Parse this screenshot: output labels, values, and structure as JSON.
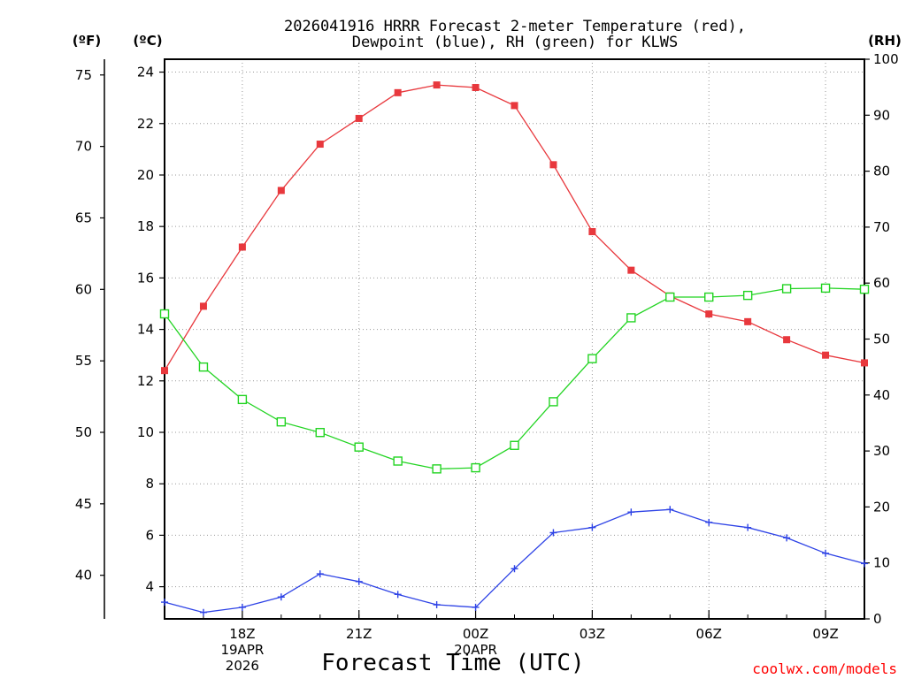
{
  "chart_data": {
    "type": "line",
    "title_line1": "2026041916 HRRR Forecast 2-meter Temperature (red),",
    "title_line2": "Dewpoint (blue), RH (green) for KLWS",
    "xlabel": "Forecast Time (UTC)",
    "credit": "coolwx.com/models",
    "unit_f": "(ºF)",
    "unit_c": "(ºC)",
    "unit_rh": "(RH)",
    "x_hours": [
      16,
      17,
      18,
      19,
      20,
      21,
      22,
      23,
      24,
      25,
      26,
      27,
      28,
      29,
      30,
      31,
      32,
      33,
      34
    ],
    "x_ticks": [
      {
        "hour": 18,
        "lines": [
          "18Z",
          "19APR",
          "2026"
        ]
      },
      {
        "hour": 21,
        "lines": [
          "21Z"
        ]
      },
      {
        "hour": 24,
        "lines": [
          "00Z",
          "20APR"
        ]
      },
      {
        "hour": 27,
        "lines": [
          "03Z"
        ]
      },
      {
        "hour": 30,
        "lines": [
          "06Z"
        ]
      },
      {
        "hour": 33,
        "lines": [
          "09Z"
        ]
      }
    ],
    "c_axis": {
      "min": 2.75,
      "max": 24.5,
      "ticks": [
        4,
        6,
        8,
        10,
        12,
        14,
        16,
        18,
        20,
        22,
        24
      ]
    },
    "f_ticks": [
      40,
      45,
      50,
      55,
      60,
      65,
      70,
      75
    ],
    "rh_axis": {
      "min": 0,
      "max": 100,
      "ticks": [
        0,
        10,
        20,
        30,
        40,
        50,
        60,
        70,
        80,
        90,
        100
      ]
    },
    "series": [
      {
        "name": "2-meter Temperature",
        "unit": "C",
        "color": "#e8383d",
        "marker": "filled-square",
        "values": [
          12.4,
          14.9,
          17.2,
          19.4,
          21.2,
          22.2,
          23.2,
          23.5,
          23.4,
          22.7,
          20.4,
          17.8,
          16.3,
          15.3,
          14.6,
          14.3,
          13.6,
          13.0,
          12.7
        ]
      },
      {
        "name": "Dewpoint",
        "unit": "C",
        "color": "#2e43e6",
        "marker": "plus",
        "values": [
          3.4,
          3.0,
          3.2,
          3.6,
          4.5,
          4.2,
          3.7,
          3.3,
          3.2,
          4.7,
          6.1,
          6.3,
          6.9,
          7.0,
          6.5,
          6.3,
          5.9,
          5.3,
          4.9
        ]
      },
      {
        "name": "RH",
        "unit": "%",
        "color": "#22d422",
        "marker": "open-square",
        "values": [
          54.5,
          45,
          39.2,
          35.2,
          33.3,
          30.7,
          28.2,
          26.8,
          27,
          31,
          38.8,
          46.5,
          53.8,
          57.5,
          57.5,
          57.8,
          59,
          59.1,
          58.9
        ]
      }
    ]
  }
}
